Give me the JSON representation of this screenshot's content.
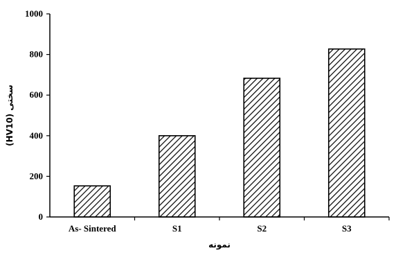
{
  "chart_data": {
    "type": "bar",
    "title": "",
    "xlabel": "نمونه",
    "ylabel": "سختی (HV10)",
    "categories": [
      "As- Sintered",
      "S1",
      "S2",
      "S3"
    ],
    "values": [
      153,
      400,
      683,
      827
    ],
    "ylim": [
      0,
      1000
    ],
    "yticks": [
      "0",
      "200",
      "400",
      "600",
      "800",
      "1000"
    ],
    "grid": false,
    "fill_pattern": "diagonal-hatch",
    "colors": {
      "bar_fill": "#ffffff",
      "hatch": "#000000",
      "axis": "#000000"
    }
  }
}
